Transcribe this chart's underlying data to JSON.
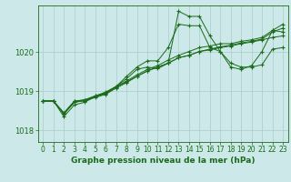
{
  "title": "Graphe pression niveau de la mer (hPa)",
  "background_color": "#cce8e8",
  "grid_color": "#aacccc",
  "line_color": "#1a6b1a",
  "xlim": [
    -0.5,
    23.5
  ],
  "ylim": [
    1017.7,
    1021.2
  ],
  "yticks": [
    1018,
    1019,
    1020
  ],
  "xticks": [
    0,
    1,
    2,
    3,
    4,
    5,
    6,
    7,
    8,
    9,
    10,
    11,
    12,
    13,
    14,
    15,
    16,
    17,
    18,
    19,
    20,
    21,
    22,
    23
  ],
  "series": [
    [
      1018.75,
      1018.75,
      1018.45,
      1018.75,
      1018.78,
      1018.88,
      1018.95,
      1019.12,
      1019.38,
      1019.62,
      1019.78,
      1019.78,
      1020.12,
      1020.72,
      1020.68,
      1020.68,
      1020.12,
      1020.02,
      1019.72,
      1019.62,
      1019.62,
      1019.68,
      1020.08,
      1020.12
    ],
    [
      1018.75,
      1018.75,
      1018.42,
      1018.72,
      1018.76,
      1018.84,
      1018.92,
      1019.08,
      1019.22,
      1019.38,
      1019.52,
      1019.62,
      1019.72,
      1019.86,
      1019.92,
      1020.02,
      1020.06,
      1020.12,
      1020.16,
      1020.22,
      1020.26,
      1020.32,
      1020.38,
      1020.42
    ],
    [
      1018.75,
      1018.75,
      1018.42,
      1018.72,
      1018.76,
      1018.86,
      1018.94,
      1019.1,
      1019.24,
      1019.38,
      1019.52,
      1019.62,
      1019.72,
      1019.86,
      1019.92,
      1020.02,
      1020.08,
      1020.14,
      1020.18,
      1020.24,
      1020.28,
      1020.34,
      1020.52,
      1020.62
    ],
    [
      1018.75,
      1018.75,
      1018.42,
      1018.74,
      1018.78,
      1018.88,
      1018.98,
      1019.12,
      1019.26,
      1019.42,
      1019.56,
      1019.66,
      1019.8,
      1019.92,
      1020.02,
      1020.12,
      1020.16,
      1020.22,
      1020.22,
      1020.28,
      1020.32,
      1020.38,
      1020.56,
      1020.72
    ],
    [
      1018.75,
      1018.75,
      1018.35,
      1018.65,
      1018.72,
      1018.86,
      1018.96,
      1019.12,
      1019.32,
      1019.56,
      1019.62,
      1019.58,
      1019.72,
      1021.05,
      1020.92,
      1020.92,
      1020.42,
      1020.02,
      1019.62,
      1019.56,
      1019.66,
      1020.02,
      1020.56,
      1020.52
    ]
  ]
}
